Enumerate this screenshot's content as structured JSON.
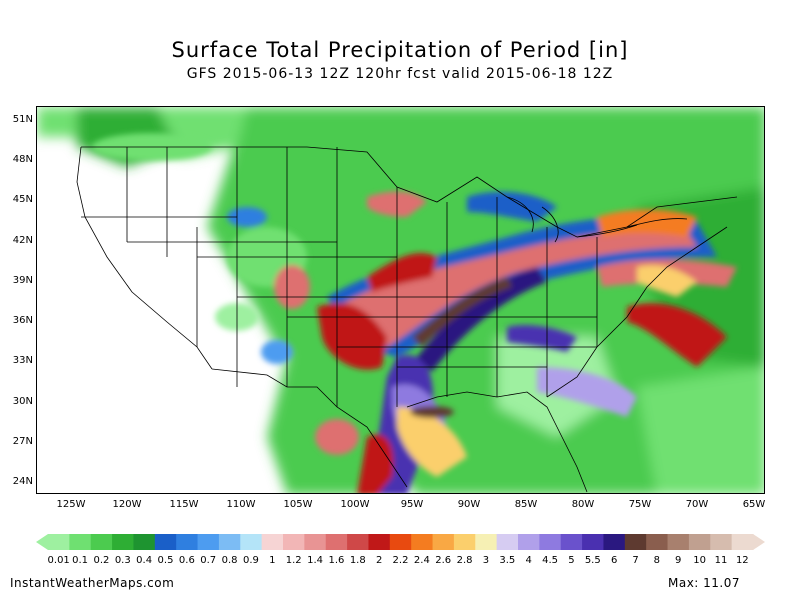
{
  "title": "Surface Total Precipitation of Period [in]",
  "subtitle": "GFS 2015-06-13 12Z 120hr fcst valid 2015-06-18 12Z",
  "lat_labels": [
    "51N",
    "48N",
    "45N",
    "42N",
    "39N",
    "36N",
    "33N",
    "30N",
    "27N",
    "24N"
  ],
  "lon_labels": [
    "125W",
    "120W",
    "115W",
    "110W",
    "105W",
    "100W",
    "95W",
    "90W",
    "85W",
    "80W",
    "75W",
    "70W",
    "65W"
  ],
  "colorbar": {
    "labels": [
      "0.01",
      "0.1",
      "0.2",
      "0.3",
      "0.4",
      "0.5",
      "0.6",
      "0.7",
      "0.8",
      "0.9",
      "1",
      "1.2",
      "1.4",
      "1.6",
      "1.8",
      "2",
      "2.2",
      "2.4",
      "2.6",
      "2.8",
      "3",
      "3.5",
      "4",
      "4.5",
      "5",
      "5.5",
      "6",
      "7",
      "8",
      "9",
      "10",
      "11",
      "12"
    ],
    "colors": [
      "#9ef0a0",
      "#6fe071",
      "#4ccb4f",
      "#2eae34",
      "#1e9430",
      "#1a5fc8",
      "#2f7fe0",
      "#4d9cf0",
      "#7cbcf4",
      "#b4e4f8",
      "#f6d4d4",
      "#f2b6b6",
      "#e89494",
      "#de7070",
      "#cf4848",
      "#c01818",
      "#e84a10",
      "#f47c20",
      "#f9a844",
      "#fbcf6c",
      "#f6f0b4",
      "#d6ccf2",
      "#b0a0ea",
      "#8e7ae0",
      "#6a52cc",
      "#4a30b0",
      "#2a1880",
      "#5e3a30",
      "#8a5e4e",
      "#a8806e",
      "#c0a090",
      "#d6bcae",
      "#ecdad0"
    ]
  },
  "footer": {
    "source": "InstantWeatherMaps.com",
    "max": "Max: 11.07"
  }
}
